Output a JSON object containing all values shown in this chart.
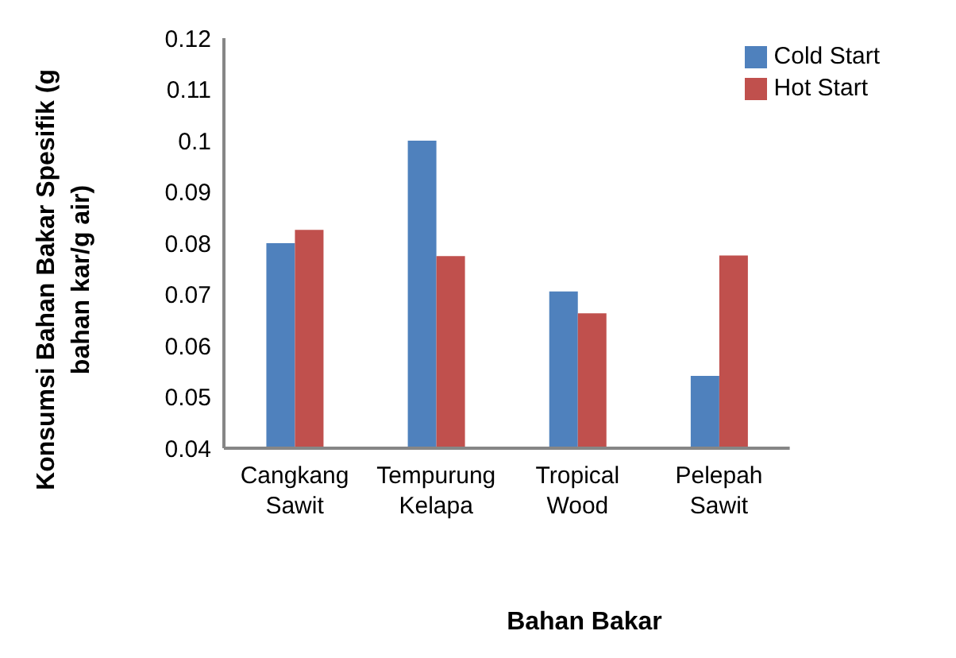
{
  "chart_data": {
    "type": "bar",
    "xlabel": "Bahan Bakar",
    "ylabel": "Konsumsi Bahan Bakar Spesifik (g bahan kar/g air)",
    "categories": [
      "Cangkang Sawit",
      "Tempurung Kelapa",
      "Tropical Wood",
      "Pelepah Sawit"
    ],
    "series": [
      {
        "name": "Cold Start",
        "color": "#4f81bd",
        "values": [
          0.08,
          0.1,
          0.0706,
          0.0541
        ]
      },
      {
        "name": "Hot Start",
        "color": "#c0504d",
        "values": [
          0.0826,
          0.0775,
          0.0663,
          0.0776
        ]
      }
    ],
    "ylim": [
      0.04,
      0.12
    ],
    "yticks": [
      0.04,
      0.05,
      0.06,
      0.07,
      0.08,
      0.09,
      0.1,
      0.11,
      0.12
    ],
    "grid": false,
    "legend": "top right"
  }
}
